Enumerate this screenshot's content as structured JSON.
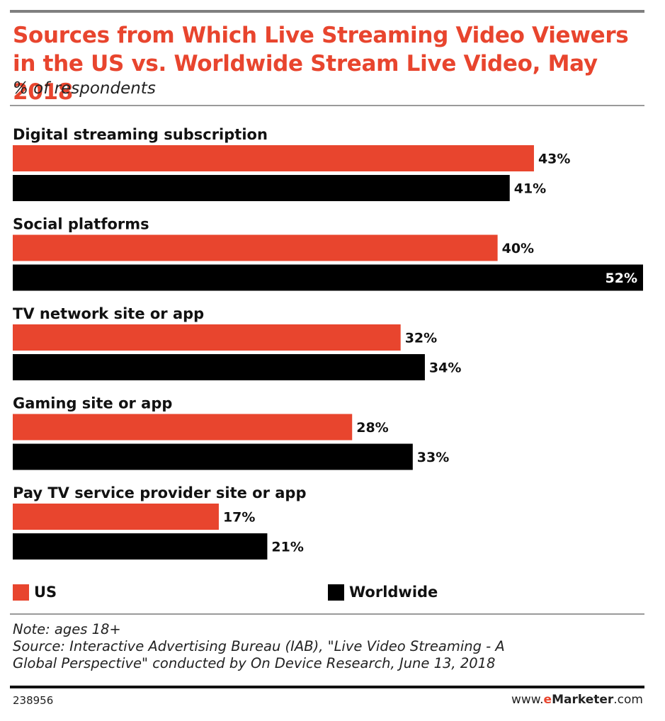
{
  "colors": {
    "title": "#e8452e",
    "us": "#e8452e",
    "worldwide": "#000000",
    "label_text": "#111111",
    "label_inside": "#ffffff"
  },
  "chart_data": {
    "type": "bar",
    "orientation": "horizontal",
    "title": "Sources from Which Live Streaming Video Viewers in the US vs. Worldwide Stream Live Video, May 2018",
    "subtitle": "% of respondents",
    "categories": [
      "Digital streaming subscription",
      "Social platforms",
      "TV network site or app",
      "Gaming site or app",
      "Pay TV service provider site or app"
    ],
    "series": [
      {
        "name": "US",
        "values": [
          43,
          40,
          32,
          28,
          17
        ],
        "labels": [
          "43%",
          "40%",
          "32%",
          "28%",
          "17%"
        ]
      },
      {
        "name": "Worldwide",
        "values": [
          41,
          52,
          34,
          33,
          21
        ],
        "labels": [
          "41%",
          "52%",
          "34%",
          "33%",
          "21%"
        ]
      }
    ],
    "xlim": [
      0,
      52
    ],
    "grid": false,
    "legend_position": "bottom"
  },
  "footer": {
    "note": "Note: ages 18+",
    "source_line1": "Source: Interactive Advertising Bureau (IAB), \"Live Video Streaming - A",
    "source_line2": "Global Perspective\" conducted by On Device Research, June 13, 2018",
    "chart_id": "238956",
    "brand_prefix": "www.",
    "brand_e": "e",
    "brand_name": "Marketer",
    "brand_suffix": ".com"
  }
}
